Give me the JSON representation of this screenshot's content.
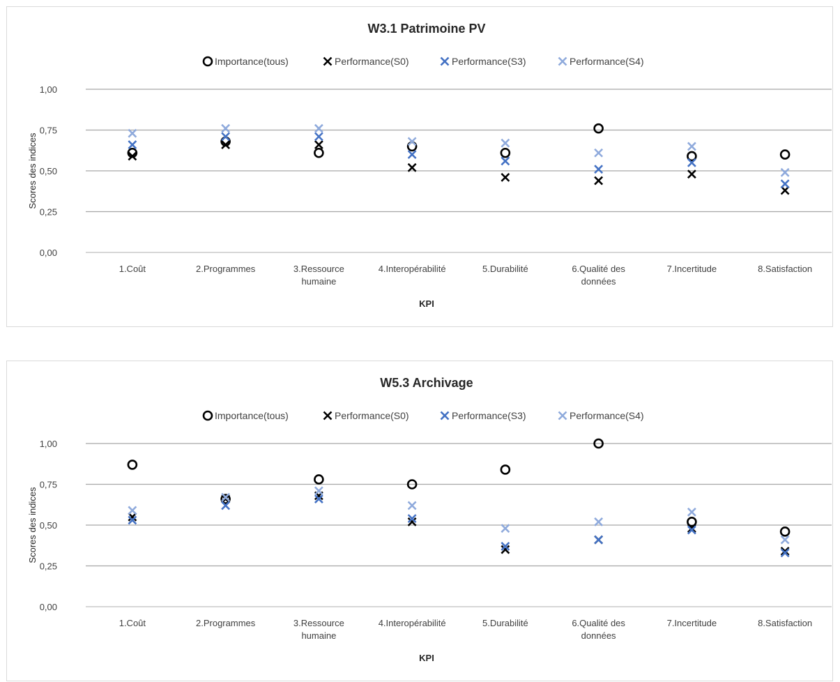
{
  "chart_data": [
    {
      "type": "scatter",
      "title": "W3.1 Patrimoine PV",
      "xlabel": "KPI",
      "ylabel": "Scores des indices",
      "ylim": [
        0,
        1
      ],
      "yticks": [
        "0,00",
        "0,25",
        "0,50",
        "0,75",
        "1,00"
      ],
      "grid": true,
      "legend_position": "top",
      "categories": [
        [
          "1.Coût"
        ],
        [
          "2.Programmes"
        ],
        [
          "3.Ressource",
          "humaine"
        ],
        [
          "4.Interopérabilité"
        ],
        [
          "5.Durabilité"
        ],
        [
          "6.Qualité des",
          "données"
        ],
        [
          "7.Incertitude"
        ],
        [
          "8.Satisfaction"
        ]
      ],
      "series": [
        {
          "name": "Importance(tous)",
          "marker": "circle",
          "color": "#000000",
          "values": [
            0.61,
            0.68,
            0.61,
            0.65,
            0.61,
            0.76,
            0.59,
            0.6
          ]
        },
        {
          "name": "Performance(S0)",
          "marker": "x",
          "color": "#000000",
          "values": [
            0.59,
            0.66,
            0.66,
            0.52,
            0.46,
            0.44,
            0.48,
            0.38
          ]
        },
        {
          "name": "Performance(S3)",
          "marker": "x",
          "color": "#4472c4",
          "values": [
            0.66,
            0.71,
            0.71,
            0.6,
            0.56,
            0.51,
            0.55,
            0.42
          ]
        },
        {
          "name": "Performance(S4)",
          "marker": "x",
          "color": "#8faadc",
          "values": [
            0.73,
            0.76,
            0.76,
            0.68,
            0.67,
            0.61,
            0.65,
            0.49
          ]
        }
      ]
    },
    {
      "type": "scatter",
      "title": "W5.3 Archivage",
      "xlabel": "KPI",
      "ylabel": "Scores des indices",
      "ylim": [
        0,
        1
      ],
      "yticks": [
        "0,00",
        "0,25",
        "0,50",
        "0,75",
        "1,00"
      ],
      "grid": true,
      "legend_position": "top",
      "categories": [
        [
          "1.Coût"
        ],
        [
          "2.Programmes"
        ],
        [
          "3.Ressource",
          "humaine"
        ],
        [
          "4.Interopérabilité"
        ],
        [
          "5.Durabilité"
        ],
        [
          "6.Qualité des",
          "données"
        ],
        [
          "7.Incertitude"
        ],
        [
          "8.Satisfaction"
        ]
      ],
      "series": [
        {
          "name": "Importance(tous)",
          "marker": "circle",
          "color": "#000000",
          "values": [
            0.87,
            0.66,
            0.78,
            0.75,
            0.84,
            1.0,
            0.52,
            0.46
          ]
        },
        {
          "name": "Performance(S0)",
          "marker": "x",
          "color": "#000000",
          "values": [
            0.55,
            0.66,
            0.68,
            0.52,
            0.35,
            0.41,
            0.48,
            0.34
          ]
        },
        {
          "name": "Performance(S3)",
          "marker": "x",
          "color": "#4472c4",
          "values": [
            0.53,
            0.62,
            0.66,
            0.54,
            0.37,
            0.41,
            0.47,
            0.33
          ]
        },
        {
          "name": "Performance(S4)",
          "marker": "x",
          "color": "#8faadc",
          "values": [
            0.59,
            0.67,
            0.71,
            0.62,
            0.48,
            0.52,
            0.58,
            0.41
          ]
        }
      ]
    }
  ]
}
